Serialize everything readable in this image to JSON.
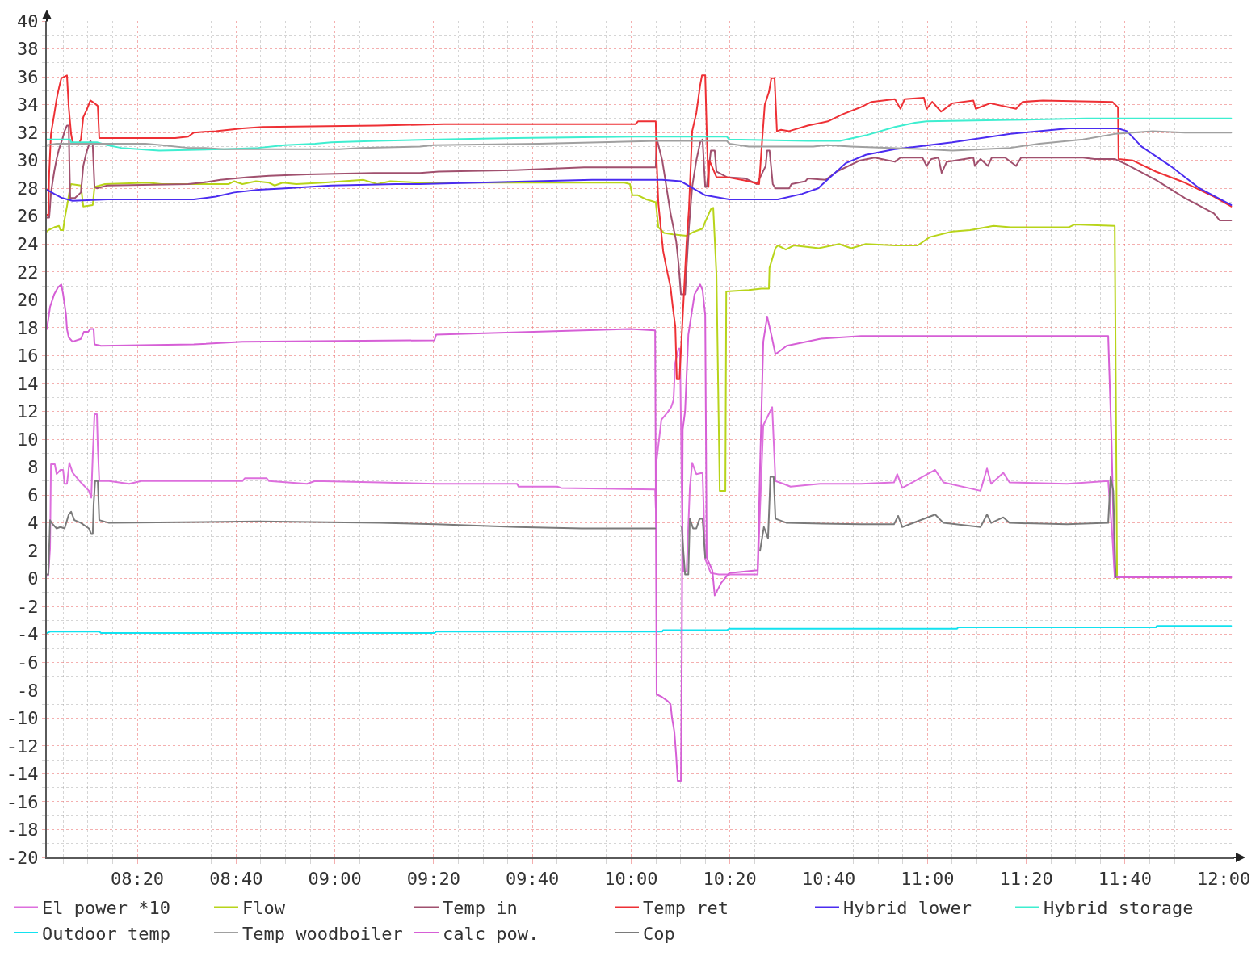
{
  "chart_data": {
    "type": "line",
    "xlim": [
      8.028,
      12.035
    ],
    "ylim": [
      -20,
      40
    ],
    "xticks": [
      {
        "value": 8.0833,
        "label": null
      },
      {
        "value": 8.1667,
        "label": null
      },
      {
        "value": 8.25,
        "label": null
      },
      {
        "value": 8.3333,
        "label": "08:20"
      },
      {
        "value": 8.4167,
        "label": null
      },
      {
        "value": 8.5,
        "label": null
      },
      {
        "value": 8.5833,
        "label": null
      },
      {
        "value": 8.6667,
        "label": "08:40"
      },
      {
        "value": 8.75,
        "label": null
      },
      {
        "value": 8.8333,
        "label": null
      },
      {
        "value": 8.9167,
        "label": null
      },
      {
        "value": 9,
        "label": "09:00"
      },
      {
        "value": 9.0833,
        "label": null
      },
      {
        "value": 9.1667,
        "label": null
      },
      {
        "value": 9.25,
        "label": null
      },
      {
        "value": 9.3333,
        "label": "09:20"
      },
      {
        "value": 9.4167,
        "label": null
      },
      {
        "value": 9.5,
        "label": null
      },
      {
        "value": 9.5833,
        "label": null
      },
      {
        "value": 9.6667,
        "label": "09:40"
      },
      {
        "value": 9.75,
        "label": null
      },
      {
        "value": 9.8333,
        "label": null
      },
      {
        "value": 9.9167,
        "label": null
      },
      {
        "value": 10,
        "label": "10:00"
      },
      {
        "value": 10.0833,
        "label": null
      },
      {
        "value": 10.1667,
        "label": null
      },
      {
        "value": 10.25,
        "label": null
      },
      {
        "value": 10.3333,
        "label": "10:20"
      },
      {
        "value": 10.4167,
        "label": null
      },
      {
        "value": 10.5,
        "label": null
      },
      {
        "value": 10.5833,
        "label": null
      },
      {
        "value": 10.6667,
        "label": "10:40"
      },
      {
        "value": 10.75,
        "label": null
      },
      {
        "value": 10.8333,
        "label": null
      },
      {
        "value": 10.9167,
        "label": null
      },
      {
        "value": 11,
        "label": "11:00"
      },
      {
        "value": 11.0833,
        "label": null
      },
      {
        "value": 11.1667,
        "label": null
      },
      {
        "value": 11.25,
        "label": null
      },
      {
        "value": 11.3333,
        "label": "11:20"
      },
      {
        "value": 11.4167,
        "label": null
      },
      {
        "value": 11.5,
        "label": null
      },
      {
        "value": 11.5833,
        "label": null
      },
      {
        "value": 11.6667,
        "label": "11:40"
      },
      {
        "value": 11.75,
        "label": null
      },
      {
        "value": 11.8333,
        "label": null
      },
      {
        "value": 11.9167,
        "label": null
      },
      {
        "value": 12,
        "label": "12:00"
      }
    ],
    "yticks": [
      40,
      {
        "value": 39,
        "label": null
      },
      38,
      {
        "value": 37,
        "label": null
      },
      36,
      {
        "value": 35,
        "label": null
      },
      34,
      {
        "value": 33,
        "label": null
      },
      32,
      {
        "value": 31,
        "label": null
      },
      30,
      {
        "value": 29,
        "label": null
      },
      28,
      {
        "value": 27,
        "label": null
      },
      26,
      {
        "value": 25,
        "label": null
      },
      24,
      {
        "value": 23,
        "label": null
      },
      22,
      {
        "value": 21,
        "label": null
      },
      20,
      {
        "value": 19,
        "label": null
      },
      18,
      {
        "value": 17,
        "label": null
      },
      16,
      {
        "value": 15,
        "label": null
      },
      14,
      {
        "value": 13,
        "label": null
      },
      12,
      {
        "value": 11,
        "label": null
      },
      10,
      {
        "value": 9,
        "label": null
      },
      8,
      {
        "value": 7,
        "label": null
      },
      6,
      {
        "value": 5,
        "label": null
      },
      4,
      {
        "value": 3,
        "label": null
      },
      2,
      {
        "value": 1,
        "label": null
      },
      0,
      {
        "value": -1,
        "label": null
      },
      -2,
      {
        "value": -3,
        "label": null
      },
      -4,
      {
        "value": -5,
        "label": null
      },
      -6,
      {
        "value": -7,
        "label": null
      },
      -8,
      {
        "value": -9,
        "label": null
      },
      -10,
      {
        "value": -11,
        "label": null
      },
      -12,
      {
        "value": -13,
        "label": null
      },
      -14,
      {
        "value": -15,
        "label": null
      },
      -16,
      {
        "value": -17,
        "label": null
      },
      -18,
      {
        "value": -19,
        "label": null
      },
      -20
    ],
    "grid": true,
    "legend": "bottom",
    "line_style": "solid",
    "series": [
      {
        "name": "El power *10",
        "color": "#dd6fdd",
        "x": [
          8.028,
          8.033,
          8.039,
          8.042,
          8.055,
          8.061,
          8.074,
          8.083,
          8.088,
          8.096,
          8.104,
          8.115,
          8.143,
          8.17,
          8.178,
          8.183,
          8.189,
          8.197,
          8.2,
          8.205,
          8.238,
          8.306,
          8.347,
          8.688,
          8.696,
          8.77,
          8.778,
          8.906,
          8.933,
          9.151,
          9.342,
          9.615,
          9.62,
          9.751,
          9.764,
          10.081,
          10.083,
          10.086,
          10.102,
          10.122,
          10.135,
          10.143,
          10.149,
          10.16,
          10.165,
          10.171,
          10.176,
          10.187,
          10.198,
          10.206,
          10.22,
          10.241,
          10.25,
          10.269,
          10.296,
          10.427,
          10.435,
          10.446,
          10.476,
          10.487,
          10.514,
          10.538,
          10.637,
          10.776,
          10.887,
          10.898,
          10.915,
          11.026,
          11.054,
          11.179,
          11.201,
          11.215,
          11.256,
          11.277,
          11.471,
          11.61,
          11.624,
          11.632,
          12.025
        ],
        "values": [
          0.2,
          0.2,
          2.2,
          8.2,
          8.2,
          7.5,
          7.8,
          7.8,
          6.8,
          6.8,
          8.3,
          7.6,
          6.9,
          6.3,
          5.8,
          8.8,
          11.8,
          11.8,
          9.5,
          7.0,
          7.0,
          6.8,
          7.0,
          7.0,
          7.2,
          7.2,
          7.0,
          6.8,
          7.0,
          6.9,
          6.8,
          6.8,
          6.6,
          6.6,
          6.5,
          6.4,
          5.1,
          8.5,
          11.4,
          11.9,
          12.3,
          12.8,
          15.5,
          16.5,
          16.5,
          6.0,
          0.5,
          0.5,
          6.5,
          8.3,
          7.5,
          7.6,
          1.4,
          0.4,
          0.3,
          0.3,
          5.0,
          11.0,
          12.3,
          7.0,
          6.8,
          6.6,
          6.8,
          6.8,
          6.9,
          7.5,
          6.5,
          7.8,
          6.9,
          6.3,
          7.9,
          6.8,
          7.6,
          6.9,
          6.8,
          7.0,
          3.0,
          0.1,
          0.1
        ]
      },
      {
        "name": "Flow",
        "color": "#b8d41a",
        "x": [
          8.028,
          8.033,
          8.053,
          8.069,
          8.074,
          8.083,
          8.088,
          8.096,
          8.107,
          8.11,
          8.143,
          8.151,
          8.183,
          8.189,
          8.224,
          8.369,
          8.415,
          8.641,
          8.66,
          8.688,
          8.734,
          8.778,
          8.797,
          8.824,
          8.87,
          8.96,
          9.097,
          9.143,
          9.187,
          9.287,
          9.778,
          9.977,
          9.996,
          10.004,
          10.023,
          10.051,
          10.083,
          10.092,
          10.111,
          10.141,
          10.187,
          10.214,
          10.241,
          10.25,
          10.269,
          10.277,
          10.288,
          10.299,
          10.318,
          10.321,
          10.397,
          10.44,
          10.465,
          10.467,
          10.487,
          10.495,
          10.522,
          10.549,
          10.634,
          10.702,
          10.743,
          10.792,
          10.89,
          10.967,
          11.008,
          11.084,
          11.144,
          11.223,
          11.28,
          11.476,
          11.496,
          11.632,
          11.64
        ],
        "values": [
          24.9,
          25.0,
          25.2,
          25.3,
          25.0,
          25.0,
          25.8,
          26.7,
          28.1,
          28.3,
          28.2,
          26.7,
          26.8,
          28.1,
          28.3,
          28.4,
          28.3,
          28.3,
          28.5,
          28.3,
          28.5,
          28.4,
          28.2,
          28.4,
          28.3,
          28.4,
          28.6,
          28.3,
          28.5,
          28.4,
          28.4,
          28.4,
          28.3,
          27.5,
          27.5,
          27.2,
          27.0,
          25.2,
          24.8,
          24.7,
          24.6,
          24.9,
          25.1,
          25.6,
          26.5,
          26.6,
          21.8,
          6.3,
          6.3,
          20.6,
          20.7,
          20.8,
          20.8,
          22.3,
          23.7,
          23.9,
          23.6,
          23.9,
          23.7,
          24.0,
          23.7,
          24.0,
          23.9,
          23.9,
          24.5,
          24.9,
          25.0,
          25.3,
          25.2,
          25.2,
          25.4,
          25.3,
          0.0
        ]
      },
      {
        "name": "Temp in",
        "color": "#a0506e",
        "x": [
          8.028,
          8.036,
          8.039,
          8.042,
          8.053,
          8.061,
          8.069,
          8.08,
          8.088,
          8.096,
          8.102,
          8.104,
          8.107,
          8.123,
          8.143,
          8.151,
          8.162,
          8.17,
          8.175,
          8.183,
          8.189,
          8.197,
          8.232,
          8.505,
          8.551,
          8.614,
          8.707,
          8.778,
          8.906,
          9.132,
          9.287,
          9.35,
          9.606,
          9.841,
          10.083,
          10.086,
          10.105,
          10.119,
          10.133,
          10.152,
          10.16,
          10.168,
          10.182,
          10.187,
          10.195,
          10.206,
          10.22,
          10.233,
          10.241,
          10.25,
          10.255,
          10.269,
          10.282,
          10.288,
          10.323,
          10.386,
          10.424,
          10.454,
          10.459,
          10.467,
          10.478,
          10.487,
          10.533,
          10.541,
          10.588,
          10.596,
          10.656,
          10.694,
          10.773,
          10.822,
          10.89,
          10.909,
          10.983,
          10.997,
          11.013,
          11.037,
          11.048,
          11.065,
          11.155,
          11.16,
          11.179,
          11.204,
          11.217,
          11.262,
          11.299,
          11.316,
          11.525,
          11.564,
          11.632,
          11.673,
          11.771,
          11.869,
          11.967,
          11.986,
          12.025
        ],
        "values": [
          25.9,
          25.9,
          26.7,
          27.7,
          29.2,
          30.1,
          30.8,
          31.5,
          32.1,
          32.5,
          32.5,
          30.0,
          27.3,
          27.3,
          27.7,
          29.6,
          30.6,
          31.1,
          31.4,
          31.1,
          28.1,
          28.0,
          28.2,
          28.3,
          28.4,
          28.6,
          28.8,
          28.9,
          29.0,
          29.1,
          29.1,
          29.2,
          29.3,
          29.5,
          29.5,
          31.6,
          30.0,
          28.1,
          26.2,
          24.2,
          22.6,
          20.4,
          20.4,
          22.3,
          25.2,
          28.1,
          30.0,
          31.3,
          31.5,
          28.1,
          28.1,
          30.7,
          30.7,
          29.2,
          28.8,
          28.7,
          28.3,
          29.6,
          30.7,
          30.7,
          28.3,
          28.0,
          28.0,
          28.3,
          28.5,
          28.7,
          28.6,
          29.2,
          30.0,
          30.2,
          29.9,
          30.2,
          30.2,
          29.6,
          30.1,
          30.2,
          29.1,
          29.9,
          30.2,
          29.6,
          30.1,
          29.6,
          30.2,
          30.2,
          29.6,
          30.2,
          30.2,
          30.1,
          30.1,
          29.7,
          28.6,
          27.3,
          26.2,
          25.7,
          25.7
        ]
      },
      {
        "name": "Temp ret",
        "color": "#ee3035",
        "x": [
          8.028,
          8.033,
          8.036,
          8.042,
          8.053,
          8.061,
          8.069,
          8.077,
          8.096,
          8.102,
          8.11,
          8.115,
          8.134,
          8.143,
          8.151,
          8.162,
          8.175,
          8.189,
          8.2,
          8.205,
          8.461,
          8.505,
          8.524,
          8.598,
          8.688,
          8.756,
          9.143,
          9.369,
          10.015,
          10.023,
          10.083,
          10.086,
          10.092,
          10.108,
          10.119,
          10.133,
          10.141,
          10.149,
          10.154,
          10.163,
          10.187,
          10.195,
          10.206,
          10.22,
          10.233,
          10.239,
          10.25,
          10.255,
          10.261,
          10.264,
          10.288,
          10.323,
          10.397,
          10.432,
          10.44,
          10.451,
          10.465,
          10.473,
          10.484,
          10.492,
          10.506,
          10.533,
          10.596,
          10.664,
          10.713,
          10.773,
          10.811,
          10.89,
          10.909,
          10.923,
          10.988,
          10.997,
          11.016,
          11.046,
          11.084,
          11.155,
          11.163,
          11.212,
          11.299,
          11.321,
          11.389,
          11.624,
          11.643,
          11.645,
          11.692,
          11.771,
          11.869,
          11.967,
          12.025
        ],
        "values": [
          26.1,
          26.1,
          29.1,
          31.9,
          33.3,
          34.4,
          35.2,
          35.9,
          36.1,
          33.8,
          31.9,
          31.3,
          31.1,
          31.5,
          33.1,
          33.6,
          34.3,
          34.1,
          33.9,
          31.6,
          31.6,
          31.7,
          32.0,
          32.1,
          32.3,
          32.4,
          32.5,
          32.6,
          32.6,
          32.8,
          32.8,
          30.0,
          26.9,
          23.5,
          22.3,
          20.9,
          19.4,
          18.1,
          14.3,
          14.3,
          24.1,
          26.5,
          32.1,
          33.4,
          35.4,
          36.1,
          36.1,
          32.1,
          28.1,
          30.0,
          28.8,
          28.8,
          28.5,
          28.3,
          30.8,
          34.0,
          34.9,
          35.9,
          35.9,
          32.1,
          32.2,
          32.1,
          32.5,
          32.8,
          33.3,
          33.8,
          34.2,
          34.4,
          33.7,
          34.4,
          34.5,
          33.7,
          34.2,
          33.5,
          34.1,
          34.3,
          33.7,
          34.1,
          33.7,
          34.2,
          34.3,
          34.2,
          33.8,
          30.1,
          30.0,
          29.2,
          28.4,
          27.4,
          26.7
        ]
      },
      {
        "name": "Hybrid lower",
        "color": "#4b2cf0",
        "x": [
          8.028,
          8.053,
          8.08,
          8.115,
          8.232,
          8.524,
          8.598,
          8.66,
          8.742,
          8.832,
          8.988,
          9.206,
          9.287,
          9.868,
          10.105,
          10.168,
          10.25,
          10.331,
          10.495,
          10.577,
          10.631,
          10.724,
          10.792,
          10.89,
          10.967,
          11.084,
          11.28,
          11.476,
          11.643,
          11.673,
          11.722,
          11.82,
          11.918,
          12.025
        ],
        "values": [
          27.9,
          27.6,
          27.3,
          27.1,
          27.2,
          27.2,
          27.4,
          27.7,
          27.9,
          28.0,
          28.2,
          28.3,
          28.3,
          28.6,
          28.6,
          28.5,
          27.5,
          27.2,
          27.2,
          27.6,
          28.0,
          29.8,
          30.4,
          30.8,
          31.0,
          31.3,
          31.9,
          32.3,
          32.3,
          32.1,
          31.0,
          29.6,
          28.0,
          26.8
        ]
      },
      {
        "name": "Hybrid storage",
        "color": "#3eeed0",
        "x": [
          8.028,
          8.107,
          8.11,
          8.197,
          8.232,
          8.279,
          8.407,
          8.625,
          8.742,
          8.832,
          8.933,
          8.988,
          9.143,
          9.35,
          9.606,
          10.015,
          10.323,
          10.331,
          10.596,
          10.705,
          10.792,
          10.89,
          10.958,
          10.997,
          11.28,
          11.536,
          12.025
        ],
        "values": [
          31.5,
          31.5,
          31.3,
          31.3,
          31.1,
          30.9,
          30.7,
          30.8,
          30.9,
          31.1,
          31.2,
          31.3,
          31.4,
          31.5,
          31.6,
          31.7,
          31.7,
          31.5,
          31.4,
          31.4,
          31.8,
          32.4,
          32.7,
          32.8,
          32.9,
          33.0,
          33.0
        ]
      },
      {
        "name": "Outdoor temp",
        "color": "#12e2f0",
        "x": [
          8.028,
          8.039,
          8.205,
          8.211,
          9.336,
          9.342,
          10.105,
          10.108,
          10.323,
          10.331,
          11.1,
          11.103,
          11.771,
          11.774,
          12.025
        ],
        "values": [
          -3.9,
          -3.8,
          -3.8,
          -3.9,
          -3.9,
          -3.8,
          -3.8,
          -3.7,
          -3.7,
          -3.6,
          -3.6,
          -3.5,
          -3.5,
          -3.4,
          -3.4
        ]
      },
      {
        "name": "Temp woodboiler",
        "color": "#a0a0a0",
        "x": [
          8.028,
          8.061,
          8.361,
          8.415,
          8.505,
          8.56,
          8.625,
          9.015,
          9.088,
          9.287,
          9.334,
          9.688,
          10.087,
          10.323,
          10.331,
          10.397,
          10.615,
          10.663,
          10.743,
          10.988,
          11.084,
          11.28,
          11.378,
          11.525,
          11.632,
          11.76,
          11.869,
          12.025
        ],
        "values": [
          31.1,
          31.2,
          31.2,
          31.1,
          30.9,
          30.9,
          30.8,
          30.8,
          30.9,
          31.0,
          31.1,
          31.2,
          31.4,
          31.4,
          31.2,
          31.0,
          31.0,
          31.1,
          31.0,
          30.8,
          30.7,
          30.9,
          31.2,
          31.5,
          31.9,
          32.1,
          32.0,
          32.0
        ]
      },
      {
        "name": "calc pow.",
        "color": "#d65fd6",
        "x": [
          8.028,
          8.033,
          8.039,
          8.053,
          8.066,
          8.077,
          8.083,
          8.093,
          8.096,
          8.102,
          8.115,
          8.143,
          8.153,
          8.167,
          8.175,
          8.186,
          8.189,
          8.211,
          8.524,
          8.688,
          9.336,
          9.342,
          9.996,
          10.081,
          10.086,
          10.105,
          10.124,
          10.133,
          10.138,
          10.146,
          10.152,
          10.157,
          10.168,
          10.171,
          10.174,
          10.182,
          10.193,
          10.214,
          10.233,
          10.241,
          10.25,
          10.255,
          10.274,
          10.282,
          10.304,
          10.331,
          10.427,
          10.435,
          10.446,
          10.459,
          10.473,
          10.487,
          10.5,
          10.525,
          10.637,
          10.776,
          11.61,
          11.621,
          11.632,
          12.025
        ],
        "values": [
          17.9,
          18.6,
          19.5,
          20.4,
          20.9,
          21.1,
          20.4,
          18.9,
          17.9,
          17.3,
          17.0,
          17.2,
          17.7,
          17.7,
          17.9,
          17.9,
          16.8,
          16.7,
          16.8,
          17.0,
          17.1,
          17.5,
          17.9,
          17.8,
          -8.3,
          -8.5,
          -8.8,
          -9.0,
          -10.0,
          -11.0,
          -12.7,
          -14.5,
          -14.5,
          -5.4,
          10.7,
          12.0,
          17.5,
          20.4,
          21.1,
          20.7,
          18.9,
          1.5,
          0.6,
          -1.2,
          -0.3,
          0.4,
          0.6,
          8.0,
          17.0,
          18.8,
          17.5,
          16.1,
          16.3,
          16.7,
          17.2,
          17.4,
          17.4,
          10.0,
          0.1,
          0.1
        ]
      },
      {
        "name": "Cop",
        "color": "#7a7a7a",
        "x": [
          8.028,
          8.033,
          8.039,
          8.044,
          8.061,
          8.074,
          8.088,
          8.102,
          8.11,
          8.121,
          8.143,
          8.17,
          8.178,
          8.183,
          8.186,
          8.191,
          8.2,
          8.205,
          8.238,
          8.742,
          9.151,
          9.342,
          9.615,
          9.833,
          10.081,
          10.083,
          10.171,
          10.176,
          10.182,
          10.193,
          10.198,
          10.209,
          10.22,
          10.231,
          10.241,
          10.25,
          10.255,
          10.435,
          10.448,
          10.462,
          10.47,
          10.481,
          10.487,
          10.525,
          10.776,
          10.887,
          10.901,
          10.915,
          11.026,
          11.054,
          11.179,
          11.201,
          11.215,
          11.256,
          11.277,
          11.471,
          11.61,
          11.618,
          11.627,
          11.635
        ],
        "values": [
          0.3,
          0.3,
          4.2,
          4.0,
          3.6,
          3.7,
          3.6,
          4.6,
          4.8,
          4.2,
          4.0,
          3.6,
          3.2,
          3.2,
          5.3,
          7.0,
          7.0,
          4.2,
          4.0,
          4.1,
          4.0,
          3.9,
          3.7,
          3.6,
          3.6,
          null,
          3.7,
          2.0,
          0.3,
          0.3,
          4.3,
          3.6,
          3.6,
          4.3,
          4.3,
          1.5,
          null,
          2.0,
          3.7,
          2.9,
          7.3,
          7.3,
          4.3,
          4.0,
          3.9,
          3.9,
          4.5,
          3.7,
          4.6,
          4.0,
          3.7,
          4.6,
          4.0,
          4.4,
          4.0,
          3.9,
          4.0,
          7.3,
          6.3,
          0.1
        ]
      }
    ]
  }
}
